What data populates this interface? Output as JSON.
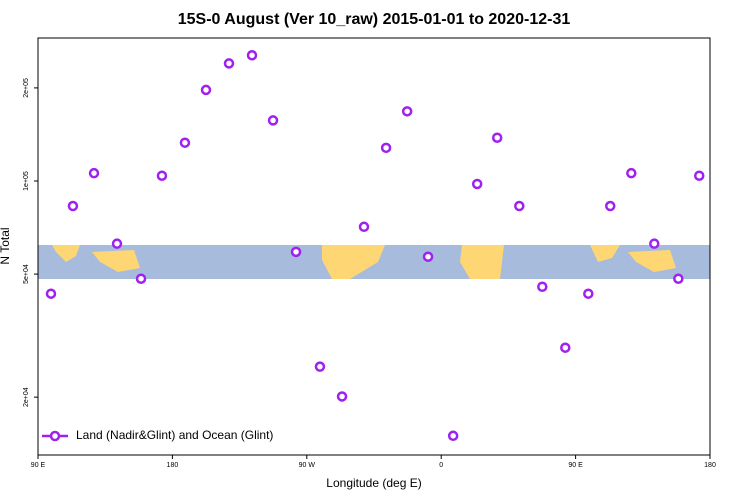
{
  "chart_data": {
    "type": "scatter",
    "title": "15S-0 August (Ver 10_raw)   2015-01-01 to 2020-12-31",
    "x_label": "Longitude (deg E)",
    "y_label": "N Total",
    "log_y": true,
    "xlim": [
      90,
      540
    ],
    "xticks": [
      {
        "value": 90,
        "label": "90 E"
      },
      180,
      {
        "value": 270,
        "label": "90 W"
      },
      {
        "value": 360,
        "label": "0"
      },
      {
        "value": 450,
        "label": "90 E"
      },
      {
        "value": 540,
        "label": "180"
      }
    ],
    "ylim": [
      13000,
      290000
    ],
    "yticks": [
      {
        "value": 20000,
        "label": "2e+04"
      },
      {
        "value": 50000,
        "label": "5e+04"
      },
      {
        "value": 100000,
        "label": "1e+05"
      },
      {
        "value": 200000,
        "label": "2e+05"
      }
    ],
    "legend_position": "bottom-left",
    "series": [
      {
        "name": "Land (Nadir&Glint) and Ocean (Glint)",
        "color": "#a020f0",
        "x": [
          98.7,
          113.4,
          127.5,
          142.9,
          159,
          173,
          188.4,
          202.5,
          217.9,
          233.3,
          247.4,
          262.8,
          278.8,
          293.6,
          308.3,
          323.1,
          337.2,
          351.2,
          368,
          384.1,
          397.5,
          412.3,
          427.7,
          443.1,
          458.5,
          473.2,
          487.3,
          502.7,
          518.8,
          532.8
        ],
        "values": [
          43200,
          83000,
          106000,
          62700,
          48300,
          104000,
          133000,
          197000,
          240000,
          255000,
          157000,
          59000,
          25100,
          20100,
          71100,
          128000,
          168000,
          56900,
          15000,
          97800,
          138000,
          83000,
          45500,
          28900,
          43200,
          83000,
          106000,
          62700,
          48300,
          104000
        ]
      }
    ]
  }
}
